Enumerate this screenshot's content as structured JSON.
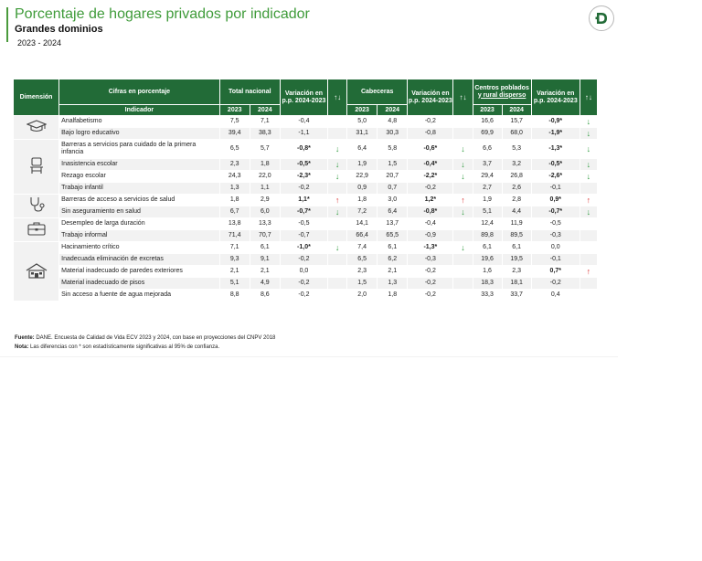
{
  "header": {
    "title": "Porcentaje de hogares privados por indicador",
    "subtitle": "Grandes dominios",
    "years": "2023 - 2024"
  },
  "table": {
    "head": {
      "dimension": "Dimensión",
      "cifras": "Cifras en porcentaje",
      "indicador": "Indicador",
      "total": "Total nacional",
      "variacion": "Variación en p.p. 2024-2023",
      "arrows": "↑↓",
      "cabeceras": "Cabeceras",
      "centros_line1": "Centros poblados",
      "centros_line2": "y rural disperso",
      "y2023": "2023",
      "y2024": "2024"
    },
    "rows": [
      {
        "label": "Analfabetismo",
        "tn23": "7,5",
        "tn24": "7,1",
        "tnv": "-0,4",
        "tnsig": false,
        "tna": "",
        "cb23": "5,0",
        "cb24": "4,8",
        "cbv": "-0,2",
        "cbsig": false,
        "cba": "",
        "cp23": "16,6",
        "cp24": "15,7",
        "cpv": "-0,9*",
        "cpsig": true,
        "cpa": "↓"
      },
      {
        "label": "Bajo logro educativo",
        "tn23": "39,4",
        "tn24": "38,3",
        "tnv": "-1,1",
        "tnsig": false,
        "tna": "",
        "cb23": "31,1",
        "cb24": "30,3",
        "cbv": "-0,8",
        "cbsig": false,
        "cba": "",
        "cp23": "69,9",
        "cp24": "68,0",
        "cpv": "-1,9*",
        "cpsig": true,
        "cpa": "↓"
      },
      {
        "label": "Barreras a servicios para cuidado de la primera infancia",
        "tn23": "6,5",
        "tn24": "5,7",
        "tnv": "-0,8*",
        "tnsig": true,
        "tna": "↓",
        "cb23": "6,4",
        "cb24": "5,8",
        "cbv": "-0,6*",
        "cbsig": true,
        "cba": "↓",
        "cp23": "6,6",
        "cp24": "5,3",
        "cpv": "-1,3*",
        "cpsig": true,
        "cpa": "↓"
      },
      {
        "label": "Inasistencia escolar",
        "tn23": "2,3",
        "tn24": "1,8",
        "tnv": "-0,5*",
        "tnsig": true,
        "tna": "↓",
        "cb23": "1,9",
        "cb24": "1,5",
        "cbv": "-0,4*",
        "cbsig": true,
        "cba": "↓",
        "cp23": "3,7",
        "cp24": "3,2",
        "cpv": "-0,5*",
        "cpsig": true,
        "cpa": "↓"
      },
      {
        "label": "Rezago escolar",
        "tn23": "24,3",
        "tn24": "22,0",
        "tnv": "-2,3*",
        "tnsig": true,
        "tna": "↓",
        "cb23": "22,9",
        "cb24": "20,7",
        "cbv": "-2,2*",
        "cbsig": true,
        "cba": "↓",
        "cp23": "29,4",
        "cp24": "26,8",
        "cpv": "-2,6*",
        "cpsig": true,
        "cpa": "↓"
      },
      {
        "label": "Trabajo infantil",
        "tn23": "1,3",
        "tn24": "1,1",
        "tnv": "-0,2",
        "tnsig": false,
        "tna": "",
        "cb23": "0,9",
        "cb24": "0,7",
        "cbv": "-0,2",
        "cbsig": false,
        "cba": "",
        "cp23": "2,7",
        "cp24": "2,6",
        "cpv": "-0,1",
        "cpsig": false,
        "cpa": ""
      },
      {
        "label": "Barreras de acceso a servicios de salud",
        "tn23": "1,8",
        "tn24": "2,9",
        "tnv": "1,1*",
        "tnsig": true,
        "tna": "↑",
        "cb23": "1,8",
        "cb24": "3,0",
        "cbv": "1,2*",
        "cbsig": true,
        "cba": "↑",
        "cp23": "1,9",
        "cp24": "2,8",
        "cpv": "0,9*",
        "cpsig": true,
        "cpa": "↑"
      },
      {
        "label": "Sin aseguramiento en salud",
        "tn23": "6,7",
        "tn24": "6,0",
        "tnv": "-0,7*",
        "tnsig": true,
        "tna": "↓",
        "cb23": "7,2",
        "cb24": "6,4",
        "cbv": "-0,8*",
        "cbsig": true,
        "cba": "↓",
        "cp23": "5,1",
        "cp24": "4,4",
        "cpv": "-0,7*",
        "cpsig": true,
        "cpa": "↓"
      },
      {
        "label": "Desempleo de larga duración",
        "tn23": "13,8",
        "tn24": "13,3",
        "tnv": "-0,5",
        "tnsig": false,
        "tna": "",
        "cb23": "14,1",
        "cb24": "13,7",
        "cbv": "-0,4",
        "cbsig": false,
        "cba": "",
        "cp23": "12,4",
        "cp24": "11,9",
        "cpv": "-0,5",
        "cpsig": false,
        "cpa": ""
      },
      {
        "label": "Trabajo informal",
        "tn23": "71,4",
        "tn24": "70,7",
        "tnv": "-0,7",
        "tnsig": false,
        "tna": "",
        "cb23": "66,4",
        "cb24": "65,5",
        "cbv": "-0,9",
        "cbsig": false,
        "cba": "",
        "cp23": "89,8",
        "cp24": "89,5",
        "cpv": "-0,3",
        "cpsig": false,
        "cpa": ""
      },
      {
        "label": "Hacinamiento crítico",
        "tn23": "7,1",
        "tn24": "6,1",
        "tnv": "-1,0*",
        "tnsig": true,
        "tna": "↓",
        "cb23": "7,4",
        "cb24": "6,1",
        "cbv": "-1,3*",
        "cbsig": true,
        "cba": "↓",
        "cp23": "6,1",
        "cp24": "6,1",
        "cpv": "0,0",
        "cpsig": false,
        "cpa": ""
      },
      {
        "label": "Inadecuada eliminación de excretas",
        "tn23": "9,3",
        "tn24": "9,1",
        "tnv": "-0,2",
        "tnsig": false,
        "tna": "",
        "cb23": "6,5",
        "cb24": "6,2",
        "cbv": "-0,3",
        "cbsig": false,
        "cba": "",
        "cp23": "19,6",
        "cp24": "19,5",
        "cpv": "-0,1",
        "cpsig": false,
        "cpa": ""
      },
      {
        "label": "Material inadecuado de paredes exteriores",
        "tn23": "2,1",
        "tn24": "2,1",
        "tnv": "0,0",
        "tnsig": false,
        "tna": "",
        "cb23": "2,3",
        "cb24": "2,1",
        "cbv": "-0,2",
        "cbsig": false,
        "cba": "",
        "cp23": "1,6",
        "cp24": "2,3",
        "cpv": "0,7*",
        "cpsig": true,
        "cpa": "↑"
      },
      {
        "label": "Material inadecuado de pisos",
        "tn23": "5,1",
        "tn24": "4,9",
        "tnv": "-0,2",
        "tnsig": false,
        "tna": "",
        "cb23": "1,5",
        "cb24": "1,3",
        "cbv": "-0,2",
        "cbsig": false,
        "cba": "",
        "cp23": "18,3",
        "cp24": "18,1",
        "cpv": "-0,2",
        "cpsig": false,
        "cpa": ""
      },
      {
        "label": "Sin acceso a fuente de agua mejorada",
        "tn23": "8,8",
        "tn24": "8,6",
        "tnv": "-0,2",
        "tnsig": false,
        "tna": "",
        "cb23": "2,0",
        "cb24": "1,8",
        "cbv": "-0,2",
        "cbsig": false,
        "cba": "",
        "cp23": "33,3",
        "cp24": "33,7",
        "cpv": "0,4",
        "cpsig": false,
        "cpa": ""
      }
    ]
  },
  "dimensions": [
    {
      "icon": "graduation-cap-icon",
      "start": 0,
      "span": 2
    },
    {
      "icon": "school-desk-icon",
      "start": 2,
      "span": 4
    },
    {
      "icon": "stethoscope-icon",
      "start": 6,
      "span": 2
    },
    {
      "icon": "briefcase-icon",
      "start": 8,
      "span": 2
    },
    {
      "icon": "house-icon",
      "start": 10,
      "span": 5
    }
  ],
  "notes": {
    "fuente_label": "Fuente:",
    "fuente_text": "DANE. Encuesta de Calidad de Vida ECV 2023 y 2024, con base en proyecciones del CNPV 2018",
    "nota_label": "Nota:",
    "nota_text": "Las diferencias con * son estadísticamente significativas al 95% de confianza."
  },
  "colors": {
    "header_green": "#226b37",
    "title_green": "#3f9b3a",
    "arrow_down": "#2e9a3e",
    "arrow_up": "#d92f2f"
  }
}
